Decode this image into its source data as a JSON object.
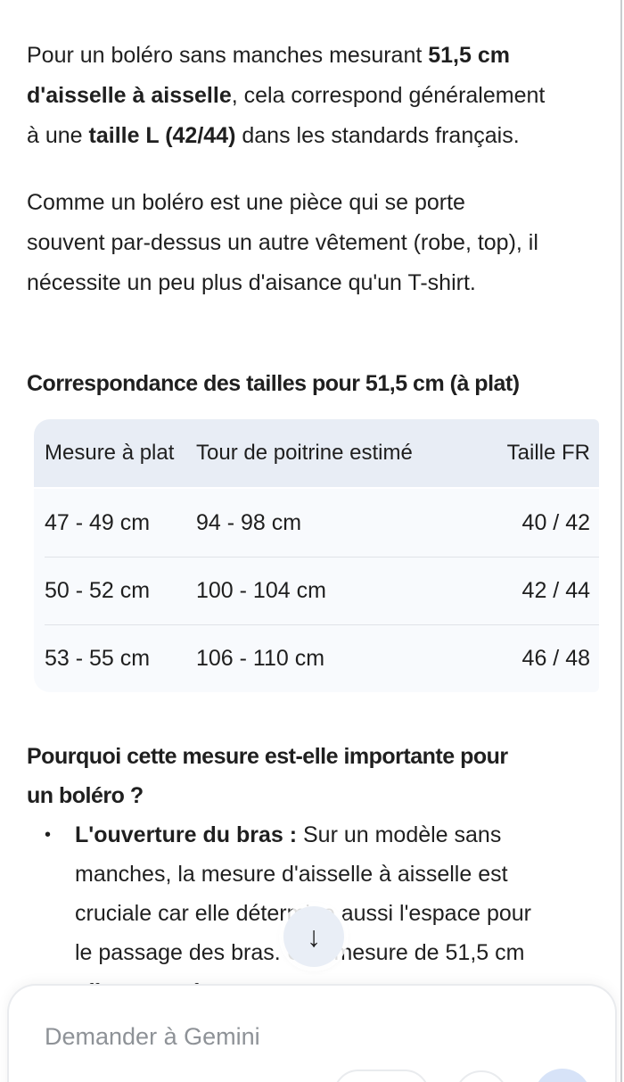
{
  "colors": {
    "text": "#1f1f1f",
    "table-header-bg": "#e8edf5",
    "table-row-bg": "#f8fafd",
    "separator": "#e0e3e8",
    "fab-bg": "#e9eef6",
    "placeholder": "#8e9297",
    "blue-chip": "#d7e3f8",
    "outline": "#e9ebee",
    "scrollbar": "#c9cccf"
  },
  "answer": {
    "paragraph1": {
      "lines": [
        [
          [
            "Pour un boléro sans manches mesurant ",
            0
          ],
          [
            "51,5 cm",
            1
          ]
        ],
        [
          [
            "d'aisselle à aisselle",
            1
          ],
          [
            ", cela correspond généralement",
            0
          ]
        ],
        [
          [
            "à une ",
            0
          ],
          [
            "taille L (42/44)",
            1
          ],
          [
            " dans les standards français.",
            0
          ]
        ]
      ]
    },
    "paragraph2": {
      "lines": [
        [
          [
            "Comme un boléro est une pièce qui se porte",
            0
          ]
        ],
        [
          [
            "souvent par-dessus un autre vêtement (robe, top), il",
            0
          ]
        ],
        [
          [
            "nécessite un peu plus d'aisance qu'un T-shirt.",
            0
          ]
        ]
      ]
    },
    "table_heading": "Correspondance des tailles pour 51,5 cm (à plat)",
    "table": {
      "headers": [
        "Mesure à plat",
        "Tour de poitrine estimé",
        "Taille FR"
      ],
      "rows": [
        [
          "47 - 49 cm",
          "94 - 98 cm",
          "40 / 42"
        ],
        [
          "50 - 52 cm",
          "100 - 104 cm",
          "42 / 44"
        ],
        [
          "53 - 55 cm",
          "106 - 110 cm",
          "46 / 48"
        ]
      ]
    },
    "section_heading": {
      "lines": [
        [
          [
            "Pourquoi cette mesure est-elle importante pour",
            1
          ]
        ],
        [
          [
            "un boléro ?",
            1
          ]
        ]
      ]
    },
    "bullet": {
      "marker": "•",
      "lines": [
        [
          [
            "L'ouverture du bras : ",
            1
          ],
          [
            "Sur un modèle sans",
            0
          ]
        ],
        [
          [
            "manches, la mesure d'aisselle à aisselle est",
            0
          ]
        ],
        [
          [
            "cruciale car elle détermine aussi l'espace pour",
            0
          ]
        ],
        [
          [
            "le passage des bras. Une mesure de 51,5 cm",
            0
          ]
        ],
        [
          [
            "offre un confort correct pour une carrure",
            0
          ]
        ]
      ]
    }
  },
  "fab": {
    "glyph": "↓"
  },
  "composer": {
    "placeholder": "Demander à Gemini"
  }
}
